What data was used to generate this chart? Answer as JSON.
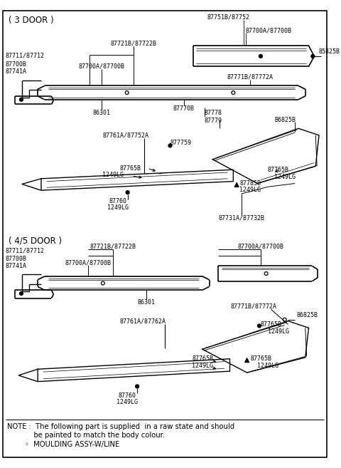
{
  "bg_color": "#ffffff",
  "section1_label": "( 3 DOOR )",
  "section2_label": "( 4/5 DOOR )",
  "note_line1": "NOTE :  The following part is supplied  in a raw state and should",
  "note_line2": "            be painted to match the body colour.",
  "note_bullet": "        ◦  MOULDING ASSY-W/LINE",
  "lfs": 6.0,
  "sfs": 8.5,
  "nfs": 7.2
}
